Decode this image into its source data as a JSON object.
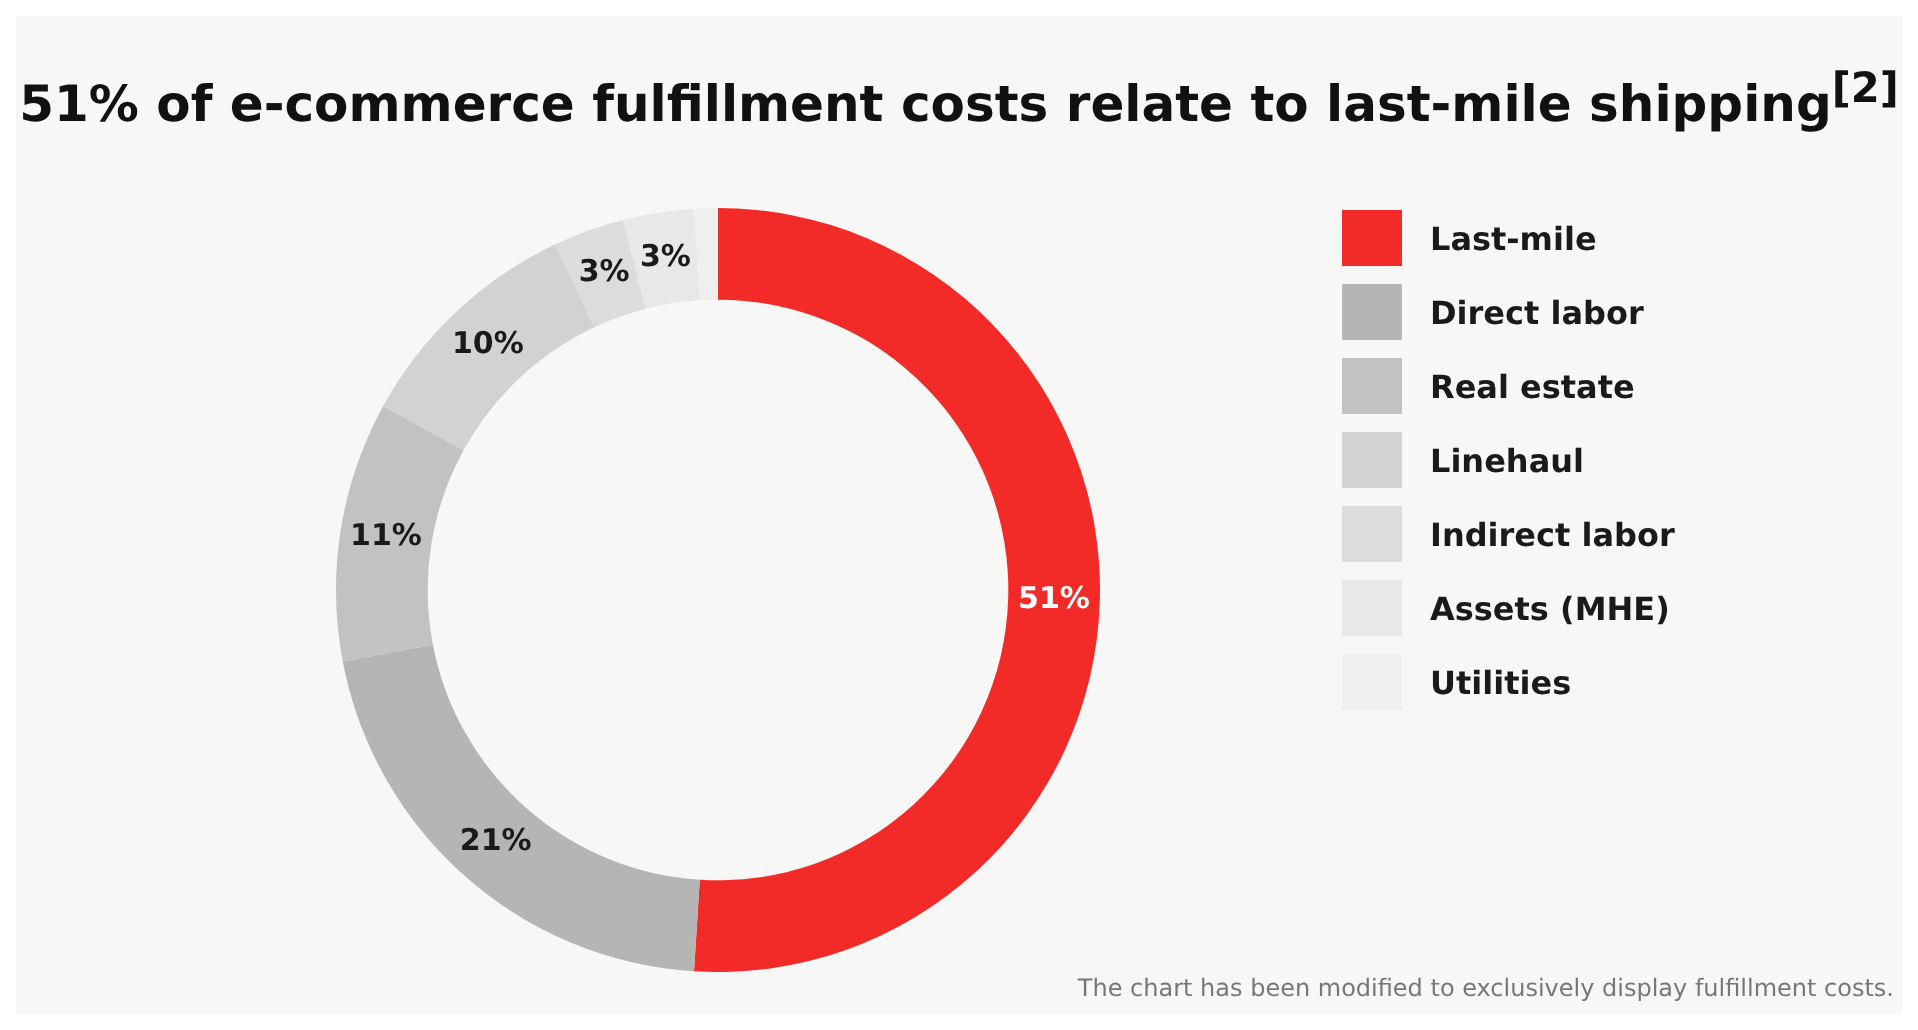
{
  "chart_data": {
    "type": "donut",
    "title": "51% of e-commerce fulfillment costs relate to last-mile shipping$^{[2]}$",
    "categories": [
      "Last-mile",
      "Direct labor",
      "Real estate",
      "Linehaul",
      "Indirect labor",
      "Assets (MHE)",
      "Utilities"
    ],
    "values": [
      51,
      21,
      11,
      10,
      3,
      3,
      1
    ],
    "colors": [
      "#f22b29",
      "#b5b5b5",
      "#c2c2c2",
      "#d3d2d2",
      "#dddcdc",
      "#e8e8e8",
      "#efefef"
    ],
    "value_labels": [
      "51%",
      "21%",
      "11%",
      "10%",
      "3%",
      "3%",
      null
    ],
    "legend": "right",
    "annotations": [
      "The chart has been modified to exclusively display fulfillment costs."
    ]
  }
}
